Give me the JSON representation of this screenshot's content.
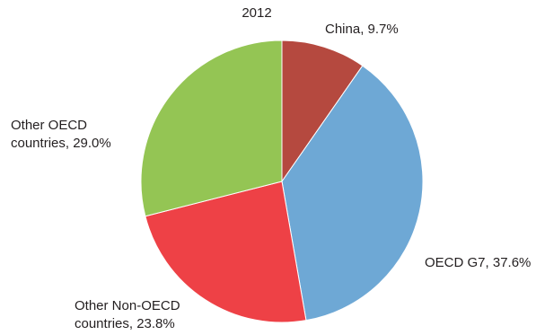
{
  "chart_data": {
    "type": "pie",
    "title": "2012",
    "slices": [
      {
        "label": "China",
        "value": 9.7,
        "color": "#b5493f",
        "text_lines": [
          "China, 9.7%"
        ]
      },
      {
        "label": "OECD G7",
        "value": 37.6,
        "color": "#6ea8d5",
        "text_lines": [
          "OECD G7, 37.6%"
        ]
      },
      {
        "label": "Other Non-OECD countries",
        "value": 23.8,
        "color": "#ee4146",
        "text_lines": [
          "Other Non-OECD",
          "countries, 23.8%"
        ]
      },
      {
        "label": "Other OECD countries",
        "value": 29.0,
        "color": "#94c554",
        "text_lines": [
          "Other OECD",
          "countries, 29.0%"
        ]
      }
    ],
    "start_angle": "top",
    "direction": "clockwise",
    "legend": "none"
  }
}
